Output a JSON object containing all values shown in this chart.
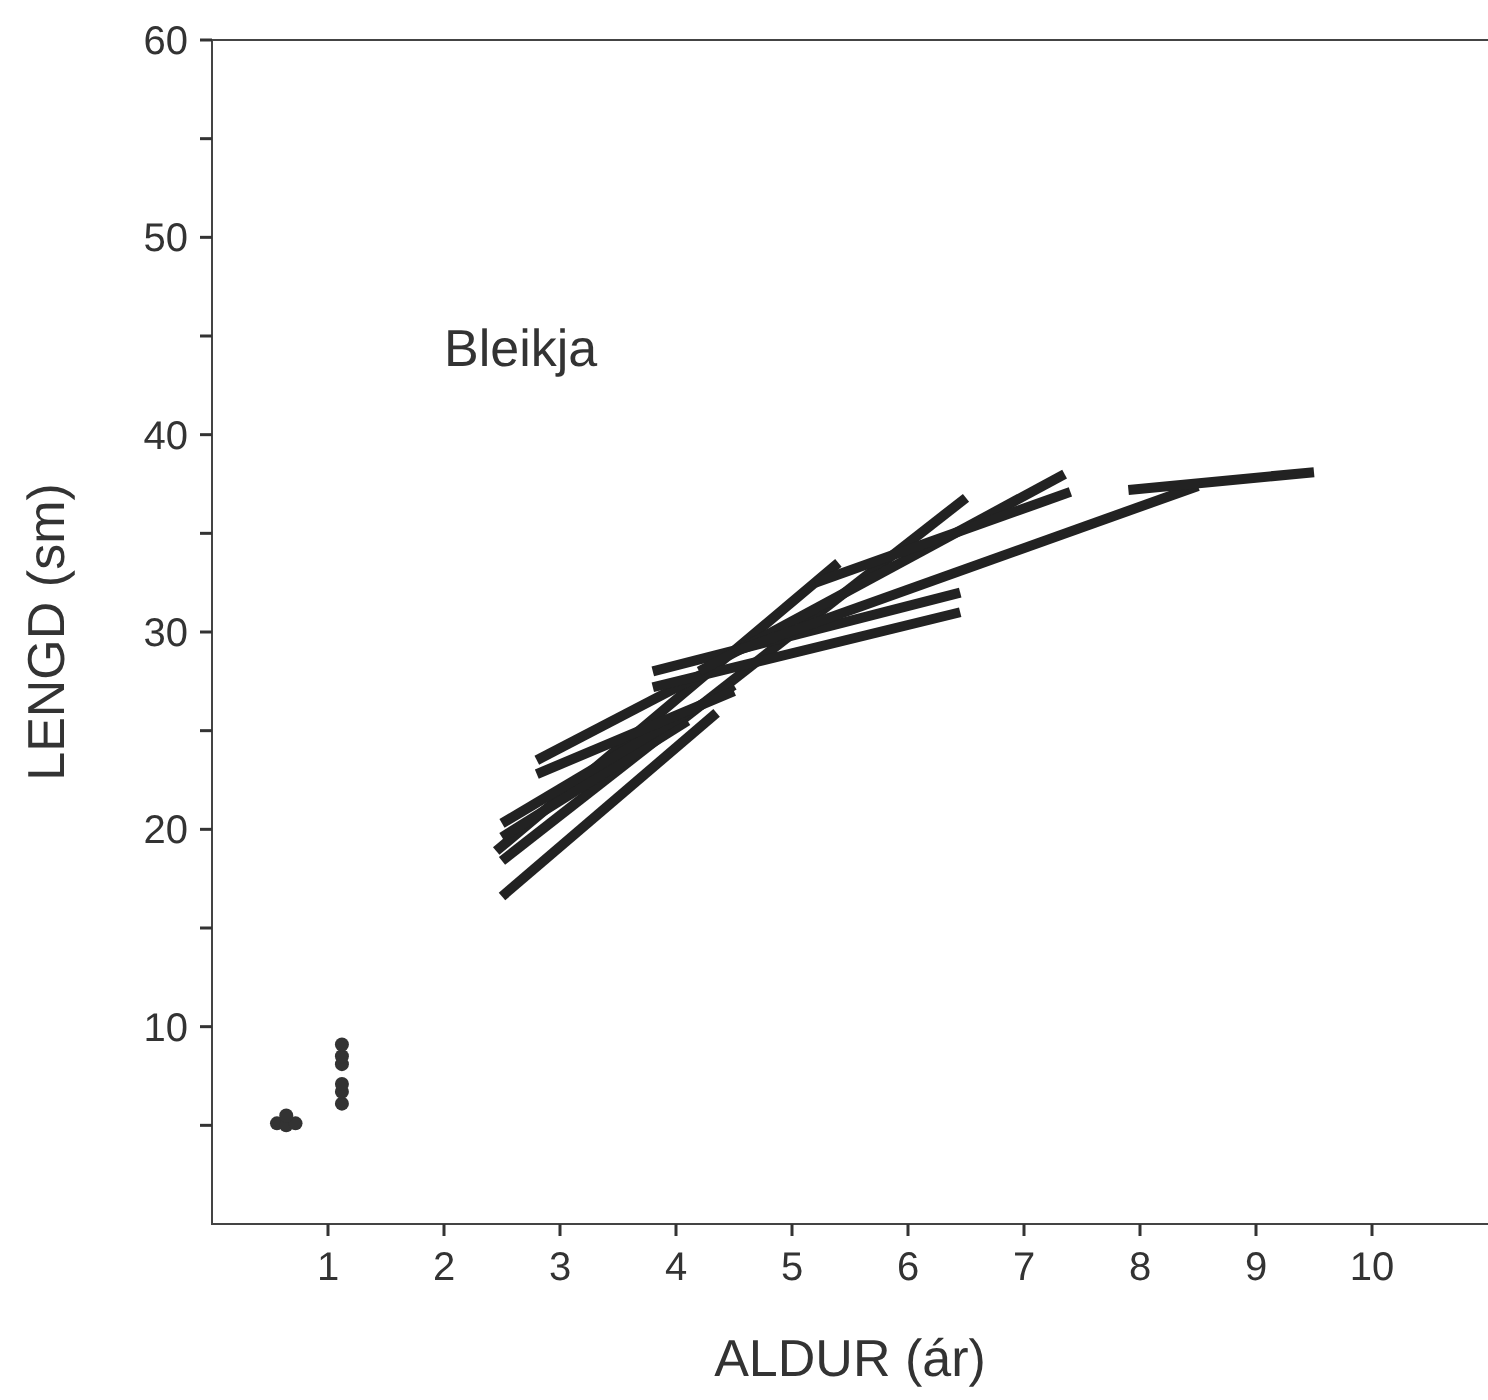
{
  "chart_data": {
    "type": "line",
    "title": "Bleikja",
    "xlabel": "ALDUR (ár)",
    "ylabel": "LENGD (sm)",
    "xlim": [
      0,
      11
    ],
    "xticks": [
      1,
      2,
      3,
      4,
      5,
      6,
      7,
      8,
      9,
      10
    ],
    "ylim": [
      0,
      60
    ],
    "yticks": [
      {
        "value": 5,
        "label": null
      },
      10,
      {
        "value": 15,
        "label": null
      },
      20,
      {
        "value": 25,
        "label": null
      },
      30,
      {
        "value": 35,
        "label": null
      },
      40,
      {
        "value": 45,
        "label": null
      },
      50,
      {
        "value": 55,
        "label": null
      },
      60
    ],
    "grid": false,
    "line_style": "solid",
    "series": [
      {
        "color": "#222222",
        "x": [
          2.5,
          4.35
        ],
        "values": [
          16.6,
          25.9
        ]
      },
      {
        "color": "#222222",
        "x": [
          2.5,
          6.5
        ],
        "values": [
          18.4,
          36.8
        ]
      },
      {
        "color": "#222222",
        "x": [
          2.45,
          5.4
        ],
        "values": [
          18.9,
          33.5
        ]
      },
      {
        "color": "#222222",
        "x": [
          2.5,
          4.1
        ],
        "values": [
          19.6,
          25.5
        ]
      },
      {
        "color": "#222222",
        "x": [
          2.5,
          4.5
        ],
        "values": [
          20.3,
          27.3
        ]
      },
      {
        "color": "#222222",
        "x": [
          2.8,
          4.5
        ],
        "values": [
          22.8,
          27
        ]
      },
      {
        "color": "#222222",
        "x": [
          2.8,
          4.4
        ],
        "values": [
          23.5,
          28.4
        ]
      },
      {
        "color": "#222222",
        "x": [
          3.8,
          6.45
        ],
        "values": [
          28,
          32
        ]
      },
      {
        "color": "#222222",
        "x": [
          3.8,
          6.45
        ],
        "values": [
          27.2,
          31
        ]
      },
      {
        "color": "#222222",
        "x": [
          4.2,
          7.35
        ],
        "values": [
          28,
          38
        ]
      },
      {
        "color": "#222222",
        "x": [
          5.2,
          7.4
        ],
        "values": [
          32.5,
          37.1
        ]
      },
      {
        "color": "#222222",
        "x": [
          4.5,
          8.5
        ],
        "values": [
          29,
          37.4
        ]
      },
      {
        "color": "#222222",
        "x": [
          7.9,
          9.5
        ],
        "values": [
          37.2,
          38.1
        ]
      },
      {
        "type": "scatter",
        "marker": "circle",
        "color": "#333333",
        "x": [
          0.56,
          0.64,
          0.72,
          0.64,
          1.12,
          1.12,
          1.12,
          1.12,
          1.12,
          1.12
        ],
        "values": [
          5.1,
          5.0,
          5.1,
          5.5,
          6.1,
          6.7,
          7.1,
          8.1,
          8.5,
          9.1
        ]
      }
    ]
  }
}
